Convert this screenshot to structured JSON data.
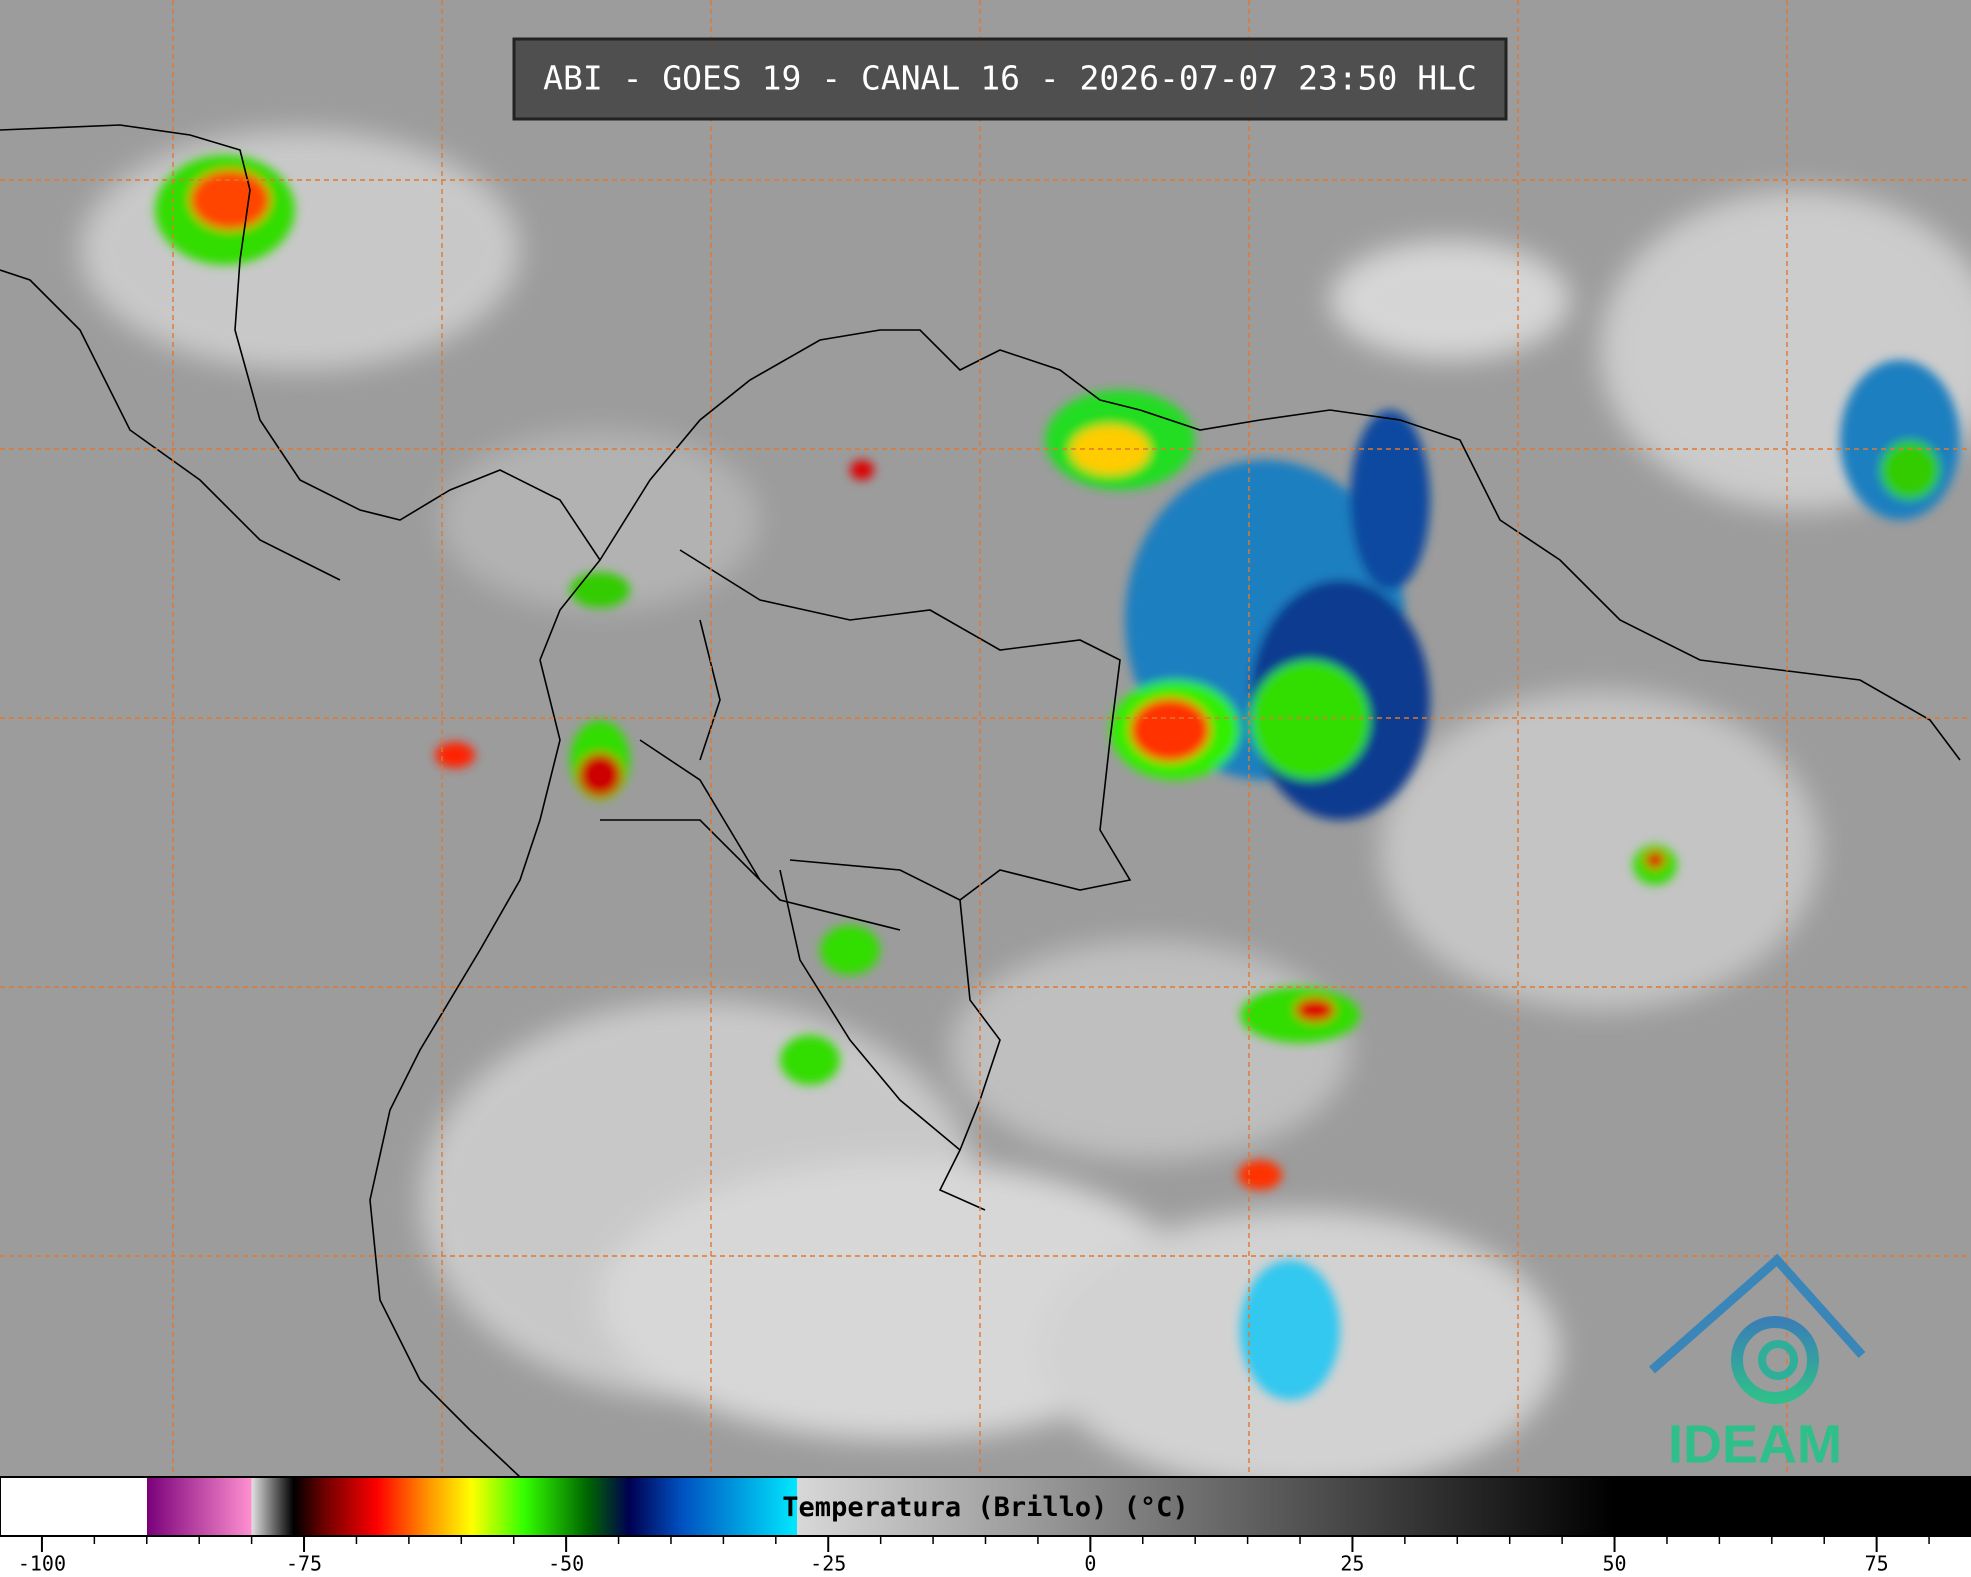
{
  "header": {
    "title": "ABI - GOES 19 - CANAL 16 - 2026-07-07 23:50 HLC"
  },
  "logo": {
    "text": "IDEAM"
  },
  "chart_data": {
    "type": "colorbar",
    "title": "Temperatura (Brillo) (°C)",
    "xlim": [
      -104,
      84
    ],
    "xticks": [
      -100,
      -75,
      -50,
      -25,
      0,
      25,
      50,
      75
    ],
    "minor_step": 5,
    "stops": [
      {
        "value": -104,
        "color": "#ffffff"
      },
      {
        "value": -90,
        "color": "#ffffff"
      },
      {
        "value": -90,
        "color": "#7a007a"
      },
      {
        "value": -80,
        "color": "#ff90d0"
      },
      {
        "value": -80,
        "color": "#e0e0e0"
      },
      {
        "value": -76,
        "color": "#000000"
      },
      {
        "value": -73,
        "color": "#700000"
      },
      {
        "value": -68,
        "color": "#ff0000"
      },
      {
        "value": -63,
        "color": "#ff9900"
      },
      {
        "value": -59,
        "color": "#ffff00"
      },
      {
        "value": -54,
        "color": "#33ff00"
      },
      {
        "value": -48,
        "color": "#006600"
      },
      {
        "value": -44,
        "color": "#000050"
      },
      {
        "value": -39,
        "color": "#0050c0"
      },
      {
        "value": -28,
        "color": "#00e8ff"
      },
      {
        "value": -28,
        "color": "#d8d8d8"
      },
      {
        "value": 50,
        "color": "#000000"
      },
      {
        "value": 84,
        "color": "#000000"
      }
    ]
  }
}
